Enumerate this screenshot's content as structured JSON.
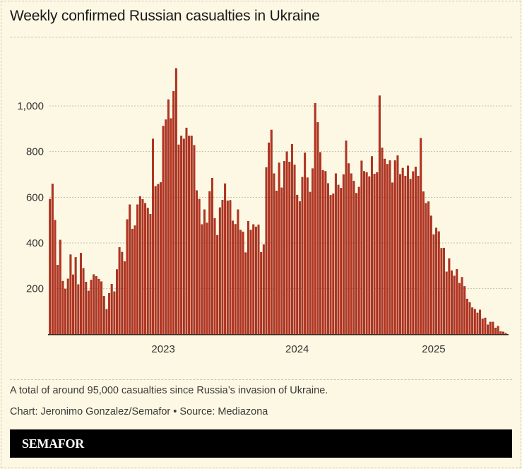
{
  "chart_data": {
    "type": "bar",
    "title": "Weekly confirmed Russian casualties in Ukraine",
    "xlabel": "",
    "ylabel": "",
    "ylim": [
      0,
      1200
    ],
    "yticks": [
      200,
      400,
      600,
      800,
      1000
    ],
    "ytick_labels": [
      "200",
      "400",
      "600",
      "800",
      "1,000"
    ],
    "x_ticks": [
      {
        "label": "2023",
        "bar_index": 44
      },
      {
        "label": "2024",
        "bar_index": 96
      },
      {
        "label": "2025",
        "bar_index": 149
      }
    ],
    "grid": true,
    "bar_color": "#b8321f",
    "values": [
      592,
      659,
      500,
      303,
      413,
      233,
      199,
      243,
      349,
      261,
      337,
      218,
      356,
      289,
      229,
      190,
      238,
      262,
      254,
      242,
      231,
      167,
      110,
      180,
      220,
      187,
      284,
      381,
      360,
      319,
      503,
      568,
      461,
      476,
      568,
      604,
      591,
      574,
      553,
      526,
      856,
      648,
      657,
      665,
      912,
      940,
      1028,
      945,
      1064,
      1165,
      830,
      869,
      856,
      904,
      869,
      869,
      828,
      630,
      592,
      481,
      546,
      488,
      626,
      684,
      508,
      434,
      555,
      588,
      660,
      585,
      587,
      497,
      482,
      546,
      457,
      449,
      358,
      495,
      457,
      481,
      471,
      480,
      359,
      393,
      731,
      839,
      895,
      704,
      628,
      751,
      642,
      758,
      800,
      755,
      832,
      742,
      610,
      582,
      688,
      795,
      686,
      623,
      726,
      1012,
      928,
      797,
      718,
      714,
      661,
      609,
      616,
      704,
      654,
      640,
      700,
      848,
      748,
      704,
      671,
      618,
      645,
      760,
      714,
      709,
      691,
      779,
      702,
      709,
      1045,
      817,
      768,
      745,
      761,
      664,
      761,
      783,
      701,
      728,
      693,
      738,
      680,
      713,
      733,
      693,
      859,
      625,
      574,
      581,
      519,
      437,
      466,
      450,
      377,
      378,
      274,
      332,
      279,
      256,
      285,
      224,
      250,
      210,
      155,
      140,
      117,
      110,
      94,
      107,
      68,
      72,
      42,
      54,
      54,
      28,
      36,
      12,
      11,
      5
    ]
  },
  "footer": {
    "note": "A total of around 95,000 casualties since Russia’s invasion of Ukraine.",
    "credit": "Chart: Jeronimo Gonzalez/Semafor • Source: Mediazona",
    "brand": "SEMAFOR"
  }
}
